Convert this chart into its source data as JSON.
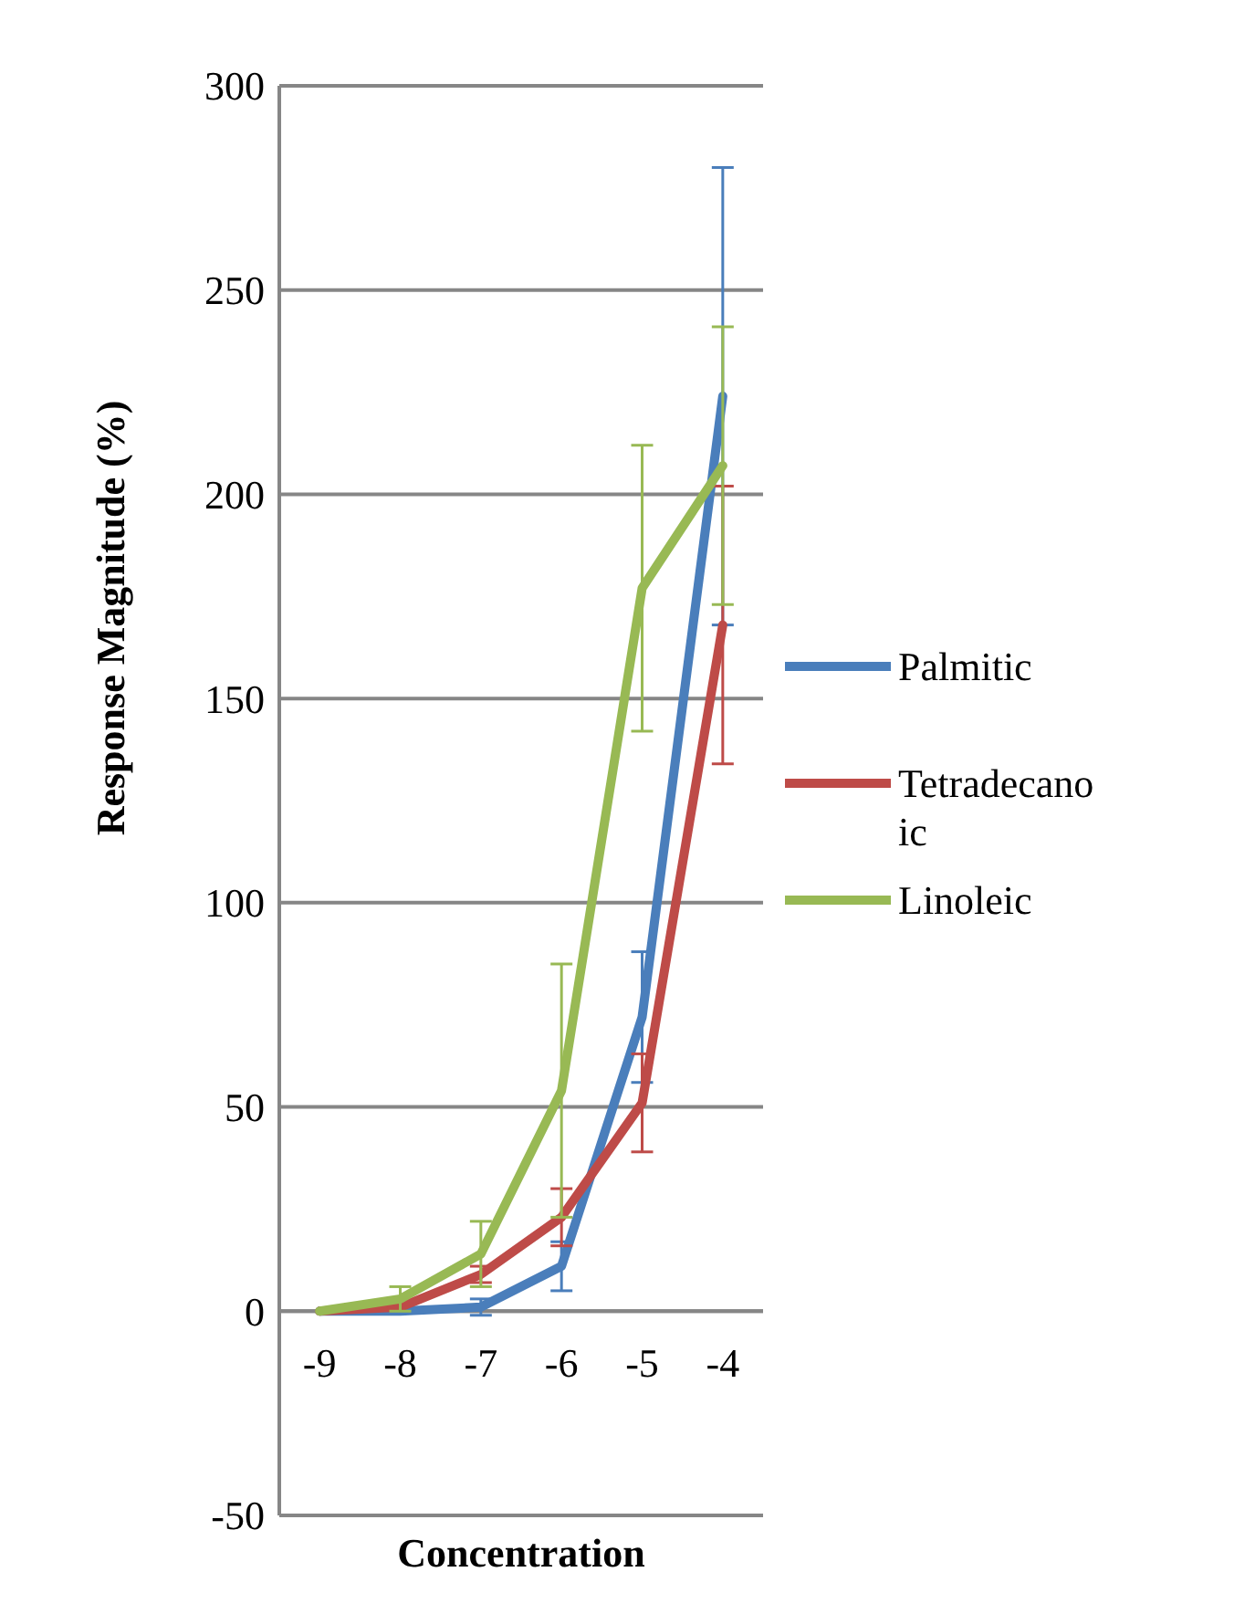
{
  "chart_data": {
    "type": "line",
    "xlabel": "Concentration",
    "ylabel": "Response Magnitude (%)",
    "categories": [
      "-9",
      "-8",
      "-7",
      "-6",
      "-5",
      "-4"
    ],
    "ylim": [
      -50,
      300
    ],
    "yticks": [
      -50,
      0,
      50,
      100,
      150,
      200,
      250,
      300
    ],
    "grid": "y",
    "legend": "right",
    "marker": "none",
    "line_style": "solid",
    "series": [
      {
        "name": "Palmitic",
        "color": "#4a7ebb",
        "values": [
          0,
          0,
          1,
          11,
          72,
          224
        ],
        "errors": [
          null,
          null,
          2,
          6,
          16,
          56
        ]
      },
      {
        "name": "Tetradecanoic",
        "color": "#be4b48",
        "values": [
          0,
          1,
          9,
          23,
          51,
          168
        ],
        "errors": [
          null,
          null,
          2,
          7,
          12,
          34
        ]
      },
      {
        "name": "Linoleic",
        "color": "#98b954",
        "values": [
          0,
          3,
          14,
          54,
          177,
          207
        ],
        "errors": [
          null,
          3,
          8,
          31,
          35,
          34
        ]
      }
    ]
  }
}
